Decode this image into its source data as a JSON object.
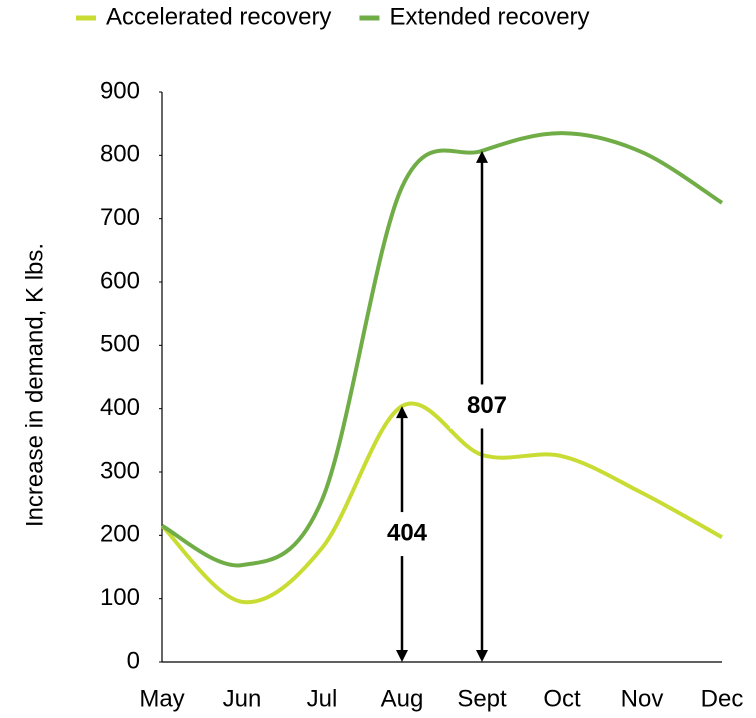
{
  "chart_data": {
    "type": "line",
    "categories": [
      "May",
      "Jun",
      "Jul",
      "Aug",
      "Sept",
      "Oct",
      "Nov",
      "Dec"
    ],
    "series": [
      {
        "name": "Accelerated recovery",
        "color": "#c9dc33",
        "values": [
          215,
          95,
          180,
          404,
          327,
          325,
          267,
          197
        ]
      },
      {
        "name": "Extended recovery",
        "color": "#70ad47",
        "values": [
          215,
          153,
          256,
          750,
          807,
          835,
          805,
          725
        ]
      }
    ],
    "y_label": "Increase in demand, K lbs.",
    "ylim": [
      0,
      900
    ],
    "yticks": [
      0,
      100,
      200,
      300,
      400,
      500,
      600,
      700,
      800,
      900
    ],
    "annotations": [
      {
        "x": "Aug",
        "value": 404
      },
      {
        "x": "Sept",
        "value": 807
      }
    ],
    "legend": "top"
  }
}
